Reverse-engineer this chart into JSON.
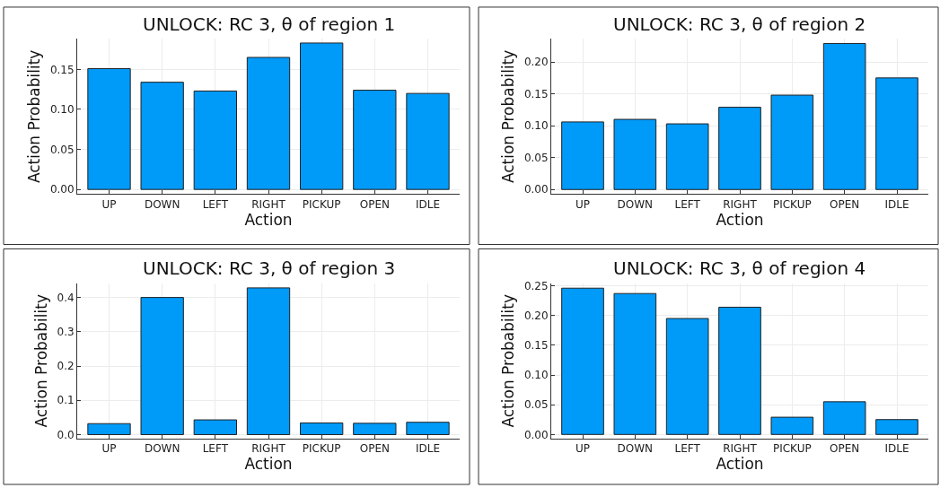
{
  "chart_data": [
    {
      "type": "bar",
      "title": "UNLOCK: RC 3, θ of region 1",
      "xlabel": "Action",
      "ylabel": "Action Probability",
      "categories": [
        "UP",
        "DOWN",
        "LEFT",
        "RIGHT",
        "PICKUP",
        "OPEN",
        "IDLE"
      ],
      "values": [
        0.151,
        0.134,
        0.123,
        0.165,
        0.183,
        0.124,
        0.12
      ],
      "color": "#009af9",
      "ylim": [
        -0.0057,
        0.188
      ],
      "yticks": [
        {
          "value": 0,
          "label": "0.00"
        },
        {
          "value": 0.05,
          "label": "0.05"
        },
        {
          "value": 0.1,
          "label": "0.10"
        },
        {
          "value": 0.15,
          "label": "0.15"
        }
      ],
      "grid": true
    },
    {
      "type": "bar",
      "title": "UNLOCK: RC 3, θ of region 2",
      "xlabel": "Action",
      "ylabel": "Action Probability",
      "categories": [
        "UP",
        "DOWN",
        "LEFT",
        "RIGHT",
        "PICKUP",
        "OPEN",
        "IDLE"
      ],
      "values": [
        0.106,
        0.11,
        0.103,
        0.129,
        0.148,
        0.229,
        0.175
      ],
      "color": "#009af9",
      "ylim": [
        -0.007,
        0.236
      ],
      "yticks": [
        {
          "value": 0,
          "label": "0.00"
        },
        {
          "value": 0.05,
          "label": "0.05"
        },
        {
          "value": 0.1,
          "label": "0.10"
        },
        {
          "value": 0.15,
          "label": "0.15"
        },
        {
          "value": 0.2,
          "label": "0.20"
        }
      ],
      "grid": true
    },
    {
      "type": "bar",
      "title": "UNLOCK: RC 3, θ of region 3",
      "xlabel": "Action",
      "ylabel": "Action Probability",
      "categories": [
        "UP",
        "DOWN",
        "LEFT",
        "RIGHT",
        "PICKUP",
        "OPEN",
        "IDLE"
      ],
      "values": [
        0.032,
        0.4,
        0.043,
        0.428,
        0.034,
        0.033,
        0.036
      ],
      "color": "#009af9",
      "ylim": [
        -0.011,
        0.441
      ],
      "yticks": [
        {
          "value": 0,
          "label": "0.0"
        },
        0.1,
        0.2,
        0.3,
        0.4
      ],
      "grid": true
    },
    {
      "type": "bar",
      "title": "UNLOCK: RC 3, θ of region 4",
      "xlabel": "Action",
      "ylabel": "Action Probability",
      "categories": [
        "UP",
        "DOWN",
        "LEFT",
        "RIGHT",
        "PICKUP",
        "OPEN",
        "IDLE"
      ],
      "values": [
        0.246,
        0.237,
        0.195,
        0.214,
        0.029,
        0.055,
        0.025
      ],
      "color": "#009af9",
      "ylim": [
        -0.0066,
        0.254
      ],
      "yticks": [
        {
          "value": 0,
          "label": "0.00"
        },
        {
          "value": 0.05,
          "label": "0.05"
        },
        {
          "value": 0.1,
          "label": "0.10"
        },
        {
          "value": 0.15,
          "label": "0.15"
        },
        {
          "value": 0.2,
          "label": "0.20"
        },
        0.25
      ],
      "grid": true
    }
  ]
}
